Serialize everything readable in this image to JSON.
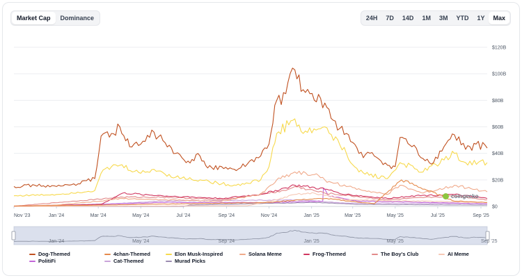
{
  "toggle": {
    "items": [
      "Market Cap",
      "Dominance"
    ],
    "active": 0
  },
  "ranges": {
    "items": [
      "24H",
      "7D",
      "14D",
      "1M",
      "3M",
      "YTD",
      "1Y",
      "Max"
    ],
    "active": 7
  },
  "watermark": {
    "text": "coingecko",
    "icon": "gecko-logo-icon"
  },
  "navigator": {
    "labels": [
      "Jan '24",
      "May '24",
      "Sep '24",
      "Jan '25",
      "May '25",
      "Sep '25"
    ]
  },
  "colors": {
    "dog": "#c0501f",
    "chan": "#e5894a",
    "elon": "#f7d94c",
    "solana": "#f0a98a",
    "frog": "#d0355f",
    "boys": "#e28a8a",
    "ai": "#f6c8b5",
    "politifi": "#c265d8",
    "cat": "#c9a3da",
    "murad": "#9b8bb0"
  },
  "chart_data": {
    "type": "line",
    "y_unit": "USD",
    "ylim": [
      0,
      120000000000
    ],
    "y_ticks": [
      {
        "v": 0,
        "label": "$0"
      },
      {
        "v": 20000000000,
        "label": "$20B"
      },
      {
        "v": 40000000000,
        "label": "$40B"
      },
      {
        "v": 60000000000,
        "label": "$60B"
      },
      {
        "v": 80000000000,
        "label": "$80B"
      },
      {
        "v": 100000000000,
        "label": "$100B"
      },
      {
        "v": 120000000000,
        "label": "$120B"
      }
    ],
    "xlim": [
      "2023-11-01",
      "2025-09-10"
    ],
    "x_ticks": [
      {
        "date": "2023-11-01",
        "label": "Nov '23"
      },
      {
        "date": "2024-01-01",
        "label": "Jan '24"
      },
      {
        "date": "2024-03-01",
        "label": "Mar '24"
      },
      {
        "date": "2024-05-01",
        "label": "May '24"
      },
      {
        "date": "2024-07-01",
        "label": "Jul '24"
      },
      {
        "date": "2024-09-01",
        "label": "Sep '24"
      },
      {
        "date": "2024-11-01",
        "label": "Nov '24"
      },
      {
        "date": "2025-01-01",
        "label": "Jan '25"
      },
      {
        "date": "2025-03-01",
        "label": "Mar '25"
      },
      {
        "date": "2025-05-01",
        "label": "May '25"
      },
      {
        "date": "2025-07-01",
        "label": "Jul '25"
      },
      {
        "date": "2025-09-01",
        "label": "Sep '25"
      }
    ],
    "grid": true,
    "legend_position": "bottom",
    "series": [
      {
        "name": "Dog-Themed",
        "color": "#c0501f",
        "points": [
          [
            "2023-11-01",
            15
          ],
          [
            "2023-12-01",
            16
          ],
          [
            "2024-01-01",
            15
          ],
          [
            "2024-02-01",
            17
          ],
          [
            "2024-02-25",
            21
          ],
          [
            "2024-03-05",
            53
          ],
          [
            "2024-03-20",
            55
          ],
          [
            "2024-04-01",
            60
          ],
          [
            "2024-04-15",
            45
          ],
          [
            "2024-05-01",
            47
          ],
          [
            "2024-05-20",
            56
          ],
          [
            "2024-06-05",
            48
          ],
          [
            "2024-06-20",
            40
          ],
          [
            "2024-07-05",
            33
          ],
          [
            "2024-07-25",
            38
          ],
          [
            "2024-08-05",
            29
          ],
          [
            "2024-08-25",
            30
          ],
          [
            "2024-09-15",
            27
          ],
          [
            "2024-10-01",
            32
          ],
          [
            "2024-10-20",
            38
          ],
          [
            "2024-11-01",
            47
          ],
          [
            "2024-11-12",
            80
          ],
          [
            "2024-11-25",
            85
          ],
          [
            "2024-12-08",
            103
          ],
          [
            "2024-12-20",
            88
          ],
          [
            "2025-01-05",
            80
          ],
          [
            "2025-01-20",
            78
          ],
          [
            "2025-02-01",
            65
          ],
          [
            "2025-02-20",
            55
          ],
          [
            "2025-03-10",
            40
          ],
          [
            "2025-04-01",
            38
          ],
          [
            "2025-04-20",
            31
          ],
          [
            "2025-05-01",
            30
          ],
          [
            "2025-05-08",
            52
          ],
          [
            "2025-05-25",
            45
          ],
          [
            "2025-06-10",
            36
          ],
          [
            "2025-06-25",
            33
          ],
          [
            "2025-07-10",
            45
          ],
          [
            "2025-07-25",
            54
          ],
          [
            "2025-08-10",
            43
          ],
          [
            "2025-08-25",
            47
          ],
          [
            "2025-09-10",
            44
          ]
        ]
      },
      {
        "name": "4chan-Themed",
        "color": "#e5894a",
        "points": [
          [
            "2023-11-01",
            0.3
          ],
          [
            "2024-03-01",
            1
          ],
          [
            "2024-11-01",
            3
          ],
          [
            "2024-12-15",
            5
          ],
          [
            "2025-01-20",
            6
          ],
          [
            "2025-04-01",
            2
          ],
          [
            "2025-05-10",
            20
          ],
          [
            "2025-07-25",
            4
          ],
          [
            "2025-09-10",
            3
          ]
        ]
      },
      {
        "name": "Elon Musk-Inspired",
        "color": "#f7d94c",
        "points": [
          [
            "2023-11-01",
            8
          ],
          [
            "2024-01-01",
            9
          ],
          [
            "2024-02-25",
            12
          ],
          [
            "2024-03-05",
            25
          ],
          [
            "2024-03-20",
            30
          ],
          [
            "2024-04-01",
            31
          ],
          [
            "2024-05-01",
            25
          ],
          [
            "2024-05-20",
            28
          ],
          [
            "2024-06-20",
            22
          ],
          [
            "2024-07-25",
            20
          ],
          [
            "2024-08-25",
            17
          ],
          [
            "2024-09-15",
            16
          ],
          [
            "2024-10-20",
            20
          ],
          [
            "2024-11-01",
            30
          ],
          [
            "2024-11-12",
            55
          ],
          [
            "2024-12-08",
            66
          ],
          [
            "2024-12-20",
            55
          ],
          [
            "2025-01-20",
            60
          ],
          [
            "2025-02-20",
            40
          ],
          [
            "2025-03-10",
            26
          ],
          [
            "2025-04-20",
            21
          ],
          [
            "2025-05-08",
            33
          ],
          [
            "2025-06-10",
            26
          ],
          [
            "2025-07-25",
            40
          ],
          [
            "2025-08-10",
            33
          ],
          [
            "2025-09-10",
            33
          ]
        ]
      },
      {
        "name": "Solana Meme",
        "color": "#f0a98a",
        "points": [
          [
            "2023-11-01",
            0.3
          ],
          [
            "2024-01-01",
            1
          ],
          [
            "2024-03-05",
            4
          ],
          [
            "2024-04-01",
            6
          ],
          [
            "2024-06-01",
            5
          ],
          [
            "2024-08-25",
            4
          ],
          [
            "2024-10-20",
            9
          ],
          [
            "2024-11-12",
            20
          ],
          [
            "2024-12-08",
            26
          ],
          [
            "2025-01-05",
            24
          ],
          [
            "2025-01-20",
            20
          ],
          [
            "2025-02-20",
            15
          ],
          [
            "2025-04-20",
            9
          ],
          [
            "2025-05-08",
            16
          ],
          [
            "2025-06-10",
            10
          ],
          [
            "2025-07-25",
            16
          ],
          [
            "2025-09-10",
            11
          ]
        ]
      },
      {
        "name": "Frog-Themed",
        "color": "#d0355f",
        "points": [
          [
            "2023-11-01",
            0.2
          ],
          [
            "2024-03-05",
            1.5
          ],
          [
            "2024-04-05",
            10
          ],
          [
            "2024-06-01",
            8
          ],
          [
            "2024-08-25",
            6
          ],
          [
            "2024-10-20",
            9
          ],
          [
            "2024-11-25",
            14
          ],
          [
            "2024-12-08",
            16
          ],
          [
            "2025-01-20",
            13
          ],
          [
            "2025-02-20",
            9
          ],
          [
            "2025-04-20",
            6
          ],
          [
            "2025-05-25",
            8
          ],
          [
            "2025-07-25",
            9
          ],
          [
            "2025-09-10",
            6
          ]
        ]
      },
      {
        "name": "The Boy's Club",
        "color": "#e28a8a",
        "points": [
          [
            "2023-11-01",
            0.2
          ],
          [
            "2024-04-05",
            7
          ],
          [
            "2024-06-01",
            7
          ],
          [
            "2024-08-25",
            5
          ],
          [
            "2024-11-25",
            12
          ],
          [
            "2024-12-08",
            15
          ],
          [
            "2025-01-20",
            10
          ],
          [
            "2025-04-20",
            5
          ],
          [
            "2025-07-25",
            8
          ],
          [
            "2025-09-10",
            5
          ]
        ]
      },
      {
        "name": "AI Meme",
        "color": "#f6c8b5",
        "points": [
          [
            "2023-11-01",
            0
          ],
          [
            "2024-10-01",
            0.5
          ],
          [
            "2024-11-12",
            5
          ],
          [
            "2024-12-08",
            9
          ],
          [
            "2025-01-05",
            10
          ],
          [
            "2025-02-20",
            5
          ],
          [
            "2025-09-10",
            3
          ]
        ]
      },
      {
        "name": "PolitiFi",
        "color": "#c265d8",
        "points": [
          [
            "2023-11-01",
            0.2
          ],
          [
            "2024-03-01",
            1.5
          ],
          [
            "2024-06-01",
            3
          ],
          [
            "2024-11-01",
            3
          ],
          [
            "2025-01-17",
            4
          ],
          [
            "2025-01-18",
            14
          ],
          [
            "2025-01-25",
            8
          ],
          [
            "2025-03-10",
            4
          ],
          [
            "2025-09-10",
            2
          ]
        ]
      },
      {
        "name": "Cat-Themed",
        "color": "#c9a3da",
        "points": [
          [
            "2023-11-01",
            0.2
          ],
          [
            "2024-03-20",
            2
          ],
          [
            "2024-06-01",
            4
          ],
          [
            "2024-12-08",
            5
          ],
          [
            "2025-02-20",
            2.5
          ],
          [
            "2025-09-10",
            2
          ]
        ]
      },
      {
        "name": "Murad Picks",
        "color": "#9b8bb0",
        "points": [
          [
            "2023-11-01",
            0
          ],
          [
            "2024-07-01",
            0
          ],
          [
            "2024-07-10",
            1
          ],
          [
            "2024-10-01",
            2
          ],
          [
            "2025-01-05",
            3
          ],
          [
            "2025-03-10",
            1.5
          ],
          [
            "2025-09-10",
            1
          ]
        ]
      }
    ]
  }
}
